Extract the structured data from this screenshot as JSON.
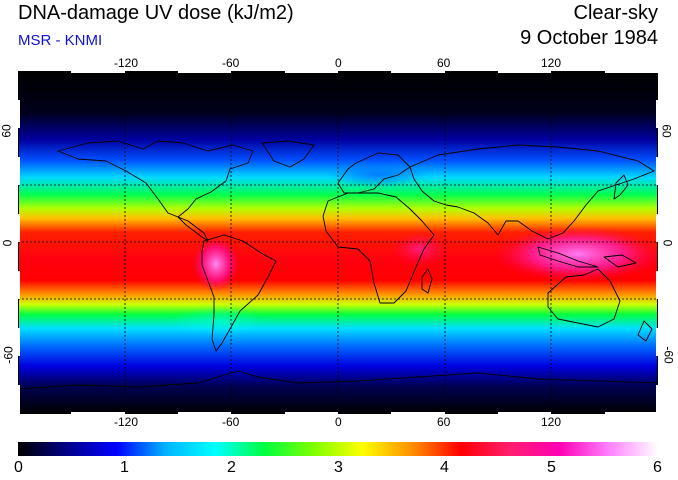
{
  "header": {
    "title": "DNA-damage UV dose (kJ/m2)",
    "subtitle": "MSR - KNMI",
    "sky_condition": "Clear-sky",
    "date": "9 October 1984"
  },
  "map": {
    "type": "global equirectangular map",
    "lon_range": [
      -180,
      180
    ],
    "lat_range": [
      -90,
      90
    ],
    "lon_ticks": [
      "-120",
      "-60",
      "0",
      "60",
      "120"
    ],
    "lat_ticks": [
      "60",
      "0",
      "-60"
    ],
    "gridlines_lat": [
      -30,
      0,
      30
    ],
    "gridlines_lon": [
      -120,
      -60,
      0,
      60,
      120
    ],
    "grid": "dotted",
    "background_dark": "#02000a"
  },
  "colorbar": {
    "min": 0,
    "max": 6,
    "labels": [
      "0",
      "1",
      "2",
      "3",
      "4",
      "5",
      "6"
    ],
    "colors": [
      "#000000",
      "#00008a",
      "#0000ff",
      "#00b4ff",
      "#00ffff",
      "#00ff40",
      "#7fff00",
      "#ffff00",
      "#ff9000",
      "#ff0000",
      "#ff1e6e",
      "#ff00b4",
      "#ff80ff",
      "#ffffff"
    ]
  }
}
